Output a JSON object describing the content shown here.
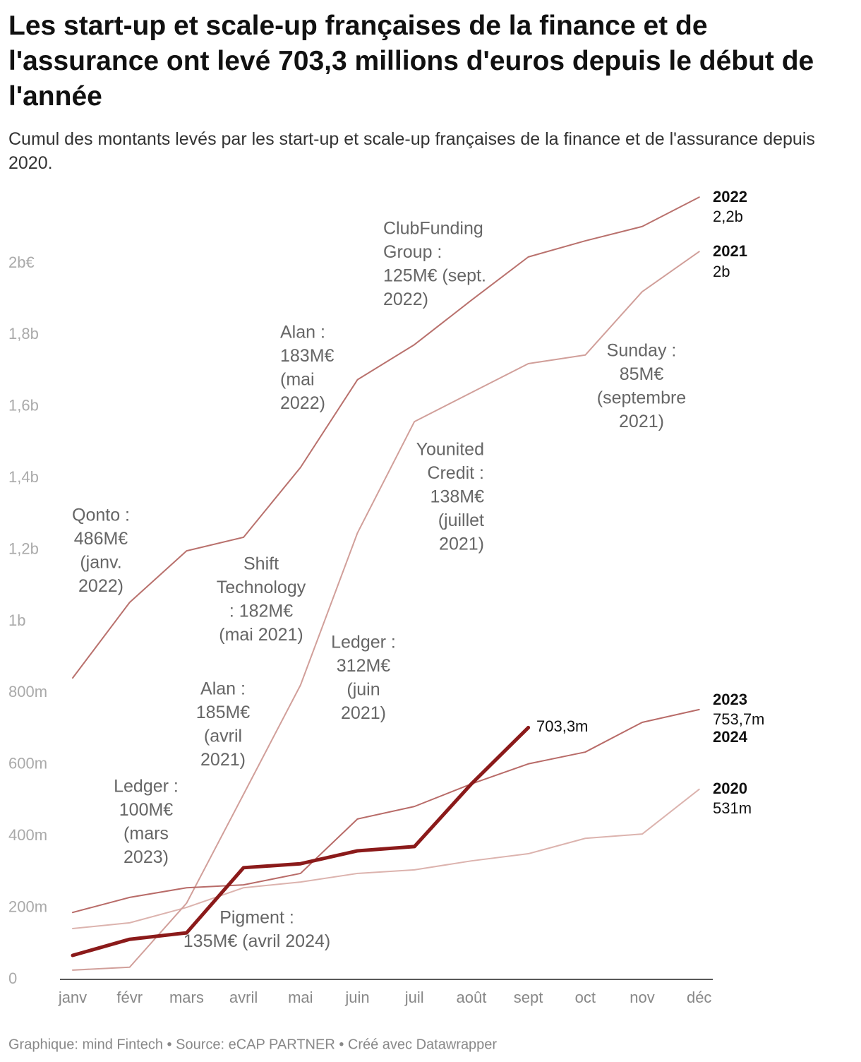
{
  "chart_data": {
    "type": "line",
    "title": "Les start-up et scale-up françaises de la finance et de l'assurance ont levé 703,3 millions d'euros depuis le début de l'année",
    "subtitle": "Cumul des montants levés par les start-up et scale-up françaises de la finance et de l'assurance depuis 2020.",
    "footer": "Graphique: mind Fintech • Source: eCAP PARTNER • Créé avec Datawrapper",
    "categories": [
      "janv",
      "févr",
      "mars",
      "avril",
      "mai",
      "juin",
      "juil",
      "août",
      "sept",
      "oct",
      "nov",
      "déc"
    ],
    "ylim": [
      0,
      2200
    ],
    "yticks": [
      0,
      {
        "value": 200,
        "label": "200m"
      },
      {
        "value": 400,
        "label": "400m"
      },
      {
        "value": 600,
        "label": "600m"
      },
      {
        "value": 800,
        "label": "800m"
      },
      {
        "value": 1000,
        "label": "1b"
      },
      {
        "value": 1200,
        "label": "1,2b"
      },
      {
        "value": 1400,
        "label": "1,4b"
      },
      {
        "value": 1600,
        "label": "1,6b"
      },
      {
        "value": 1800,
        "label": "1,8b"
      },
      {
        "value": 2000,
        "label": "2b€"
      }
    ],
    "grid": false,
    "series": [
      {
        "name": "2020",
        "color": "#dcb3ae",
        "width": 2,
        "values": [
          142,
          158,
          201,
          256,
          272,
          296,
          306,
          331,
          351,
          394,
          406,
          531
        ],
        "value_labels": [
          null,
          null,
          null,
          null,
          null,
          null,
          null,
          null,
          null,
          null,
          null,
          "531m"
        ]
      },
      {
        "name": "2021",
        "color": "#d19f9a",
        "width": 2,
        "values": [
          26,
          34,
          213,
          517,
          822,
          1247,
          1558,
          1639,
          1720,
          1744,
          1921,
          2033
        ],
        "value_labels": [
          null,
          null,
          null,
          null,
          null,
          null,
          null,
          null,
          null,
          null,
          null,
          "2b"
        ]
      },
      {
        "name": "2022",
        "color": "#b9716d",
        "width": 2,
        "values": [
          842,
          1053,
          1197,
          1235,
          1430,
          1675,
          1773,
          1897,
          2018,
          2063,
          2103,
          2185
        ],
        "value_labels": [
          null,
          null,
          null,
          null,
          null,
          null,
          null,
          null,
          null,
          null,
          null,
          "2,2b"
        ]
      },
      {
        "name": "2023",
        "color": "#b86b68",
        "width": 2,
        "values": [
          187,
          229,
          256,
          264,
          296,
          448,
          483,
          546,
          602,
          635,
          718,
          753.7
        ],
        "value_labels": [
          null,
          null,
          null,
          null,
          null,
          null,
          null,
          null,
          null,
          null,
          null,
          "753,7m"
        ]
      },
      {
        "name": "2024",
        "color": "#8b1a1a",
        "width": 5,
        "values": [
          67,
          112,
          130,
          312,
          323,
          359,
          371,
          546,
          703.3,
          null,
          null,
          null
        ],
        "value_labels": [
          null,
          null,
          null,
          null,
          null,
          null,
          null,
          null,
          "703,3m",
          null,
          null,
          null
        ]
      }
    ],
    "annotations": [
      [
        "Qonto :",
        "486M€",
        "(janv.",
        "2022)"
      ],
      [
        "Alan :",
        "183M€",
        "(mai",
        "2022)"
      ],
      [
        "ClubFunding",
        "Group :",
        "125M€ (sept.",
        "2022)"
      ],
      [
        "Sunday :",
        "85M€",
        "(septembre",
        "2021)"
      ],
      [
        "Younited",
        "Credit :",
        "138M€",
        "(juillet",
        "2021)"
      ],
      [
        "Shift",
        "Technology",
        ": 182M€",
        "(mai 2021)"
      ],
      [
        "Ledger :",
        "312M€",
        "(juin",
        "2021)"
      ],
      [
        "Alan :",
        "185M€",
        "(avril",
        "2021)"
      ],
      [
        "Ledger :",
        "100M€",
        "(mars",
        "2023)"
      ],
      [
        "Pigment :",
        "135M€ (avril 2024)"
      ]
    ]
  }
}
